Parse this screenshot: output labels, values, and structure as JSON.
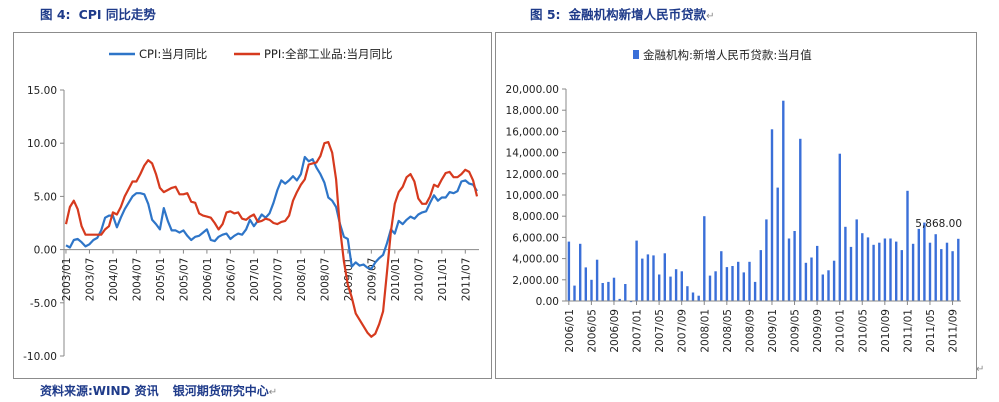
{
  "figure1": {
    "number": "图 4:",
    "title": "CPI 同比走势",
    "chart_data": {
      "type": "line",
      "x": [
        "2003/01",
        "2003/02",
        "2003/03",
        "2003/04",
        "2003/05",
        "2003/06",
        "2003/07",
        "2003/08",
        "2003/09",
        "2003/10",
        "2003/11",
        "2003/12",
        "2004/01",
        "2004/02",
        "2004/03",
        "2004/04",
        "2004/05",
        "2004/06",
        "2004/07",
        "2004/08",
        "2004/09",
        "2004/10",
        "2004/11",
        "2004/12",
        "2005/01",
        "2005/02",
        "2005/03",
        "2005/04",
        "2005/05",
        "2005/06",
        "2005/07",
        "2005/08",
        "2005/09",
        "2005/10",
        "2005/11",
        "2005/12",
        "2006/01",
        "2006/02",
        "2006/03",
        "2006/04",
        "2006/05",
        "2006/06",
        "2006/07",
        "2006/08",
        "2006/09",
        "2006/10",
        "2006/11",
        "2006/12",
        "2007/01",
        "2007/02",
        "2007/03",
        "2007/04",
        "2007/05",
        "2007/06",
        "2007/07",
        "2007/08",
        "2007/09",
        "2007/10",
        "2007/11",
        "2007/12",
        "2008/01",
        "2008/02",
        "2008/03",
        "2008/04",
        "2008/05",
        "2008/06",
        "2008/07",
        "2008/08",
        "2008/09",
        "2008/10",
        "2008/11",
        "2008/12",
        "2009/01",
        "2009/02",
        "2009/03",
        "2009/04",
        "2009/05",
        "2009/06",
        "2009/07",
        "2009/08",
        "2009/09",
        "2009/10",
        "2009/11",
        "2009/12",
        "2010/01",
        "2010/02",
        "2010/03",
        "2010/04",
        "2010/05",
        "2010/06",
        "2010/07",
        "2010/08",
        "2010/09",
        "2010/10",
        "2010/11",
        "2010/12",
        "2011/01",
        "2011/02",
        "2011/03",
        "2011/04",
        "2011/05",
        "2011/06",
        "2011/07",
        "2011/08",
        "2011/09",
        "2011/10"
      ],
      "x_tick_labels": [
        "2003/01",
        "2003/07",
        "2004/01",
        "2004/07",
        "2005/01",
        "2005/07",
        "2006/01",
        "2006/07",
        "2007/01",
        "2007/07",
        "2008/01",
        "2008/07",
        "2009/01",
        "2009/07",
        "2010/01",
        "2010/07",
        "2011/01",
        "2011/07"
      ],
      "ylim": [
        -10,
        15
      ],
      "y_ticks": [
        "15.00",
        "10.00",
        "5.00",
        "0.00",
        "-5.00",
        "-10.00"
      ],
      "y_tick_values": [
        15,
        10,
        5,
        0,
        -5,
        -10
      ],
      "legend_position": "top",
      "series": [
        {
          "name": "CPI:当月同比",
          "color": "#2e75c8",
          "values": [
            0.4,
            0.2,
            0.9,
            1.0,
            0.7,
            0.3,
            0.5,
            0.9,
            1.1,
            1.8,
            3.0,
            3.2,
            3.2,
            2.1,
            3.0,
            3.8,
            4.4,
            5.0,
            5.3,
            5.3,
            5.2,
            4.3,
            2.8,
            2.4,
            1.9,
            3.9,
            2.7,
            1.8,
            1.8,
            1.6,
            1.8,
            1.3,
            0.9,
            1.2,
            1.3,
            1.6,
            1.9,
            0.9,
            0.8,
            1.2,
            1.4,
            1.5,
            1.0,
            1.3,
            1.5,
            1.4,
            1.9,
            2.8,
            2.2,
            2.7,
            3.3,
            3.0,
            3.4,
            4.4,
            5.6,
            6.5,
            6.2,
            6.5,
            6.9,
            6.5,
            7.1,
            8.7,
            8.3,
            8.5,
            7.7,
            7.1,
            6.3,
            4.9,
            4.6,
            4.0,
            2.4,
            1.2,
            1.0,
            -1.6,
            -1.2,
            -1.5,
            -1.4,
            -1.7,
            -1.8,
            -1.2,
            -0.8,
            -0.5,
            0.6,
            1.9,
            1.5,
            2.7,
            2.4,
            2.8,
            3.1,
            2.9,
            3.3,
            3.5,
            3.6,
            4.4,
            5.1,
            4.6,
            4.9,
            4.9,
            5.4,
            5.3,
            5.5,
            6.4,
            6.5,
            6.2,
            6.1,
            5.5
          ]
        },
        {
          "name": "PPI:全部工业品:当月同比",
          "color": "#d63a1e",
          "values": [
            2.4,
            4.0,
            4.6,
            3.8,
            2.2,
            1.4,
            1.4,
            1.4,
            1.4,
            1.4,
            1.9,
            2.2,
            3.5,
            3.3,
            4.0,
            5.0,
            5.7,
            6.4,
            6.4,
            7.1,
            7.9,
            8.4,
            8.1,
            7.1,
            5.8,
            5.4,
            5.6,
            5.8,
            5.9,
            5.2,
            5.2,
            5.3,
            4.5,
            4.4,
            3.4,
            3.2,
            3.1,
            3.0,
            2.5,
            1.9,
            2.4,
            3.5,
            3.6,
            3.4,
            3.5,
            2.9,
            2.8,
            3.1,
            3.3,
            2.6,
            2.7,
            2.9,
            2.8,
            2.5,
            2.4,
            2.6,
            2.7,
            3.2,
            4.6,
            5.4,
            6.1,
            6.6,
            8.0,
            8.1,
            8.2,
            8.8,
            10.0,
            10.1,
            9.1,
            6.6,
            2.0,
            -1.1,
            -3.3,
            -4.5,
            -6.0,
            -6.6,
            -7.2,
            -7.8,
            -8.2,
            -7.9,
            -7.0,
            -5.8,
            -2.1,
            1.7,
            4.3,
            5.4,
            5.9,
            6.8,
            7.1,
            6.4,
            4.8,
            4.3,
            4.3,
            5.0,
            6.1,
            5.9,
            6.6,
            7.2,
            7.3,
            6.8,
            6.8,
            7.1,
            7.5,
            7.3,
            6.5,
            5.0
          ]
        }
      ]
    }
  },
  "figure2": {
    "number": "图 5:",
    "title": "金融机构新增人民币贷款",
    "chart_data": {
      "type": "bar",
      "x": [
        "2006/01",
        "2006/02",
        "2006/03",
        "2006/04",
        "2006/05",
        "2006/06",
        "2006/07",
        "2006/08",
        "2006/09",
        "2006/10",
        "2006/11",
        "2006/12",
        "2007/01",
        "2007/02",
        "2007/03",
        "2007/04",
        "2007/05",
        "2007/06",
        "2007/07",
        "2007/08",
        "2007/09",
        "2007/10",
        "2007/11",
        "2007/12",
        "2008/01",
        "2008/02",
        "2008/03",
        "2008/04",
        "2008/05",
        "2008/06",
        "2008/07",
        "2008/08",
        "2008/09",
        "2008/10",
        "2008/11",
        "2008/12",
        "2009/01",
        "2009/02",
        "2009/03",
        "2009/04",
        "2009/05",
        "2009/06",
        "2009/07",
        "2009/08",
        "2009/09",
        "2009/10",
        "2009/11",
        "2009/12",
        "2010/01",
        "2010/02",
        "2010/03",
        "2010/04",
        "2010/05",
        "2010/06",
        "2010/07",
        "2010/08",
        "2010/09",
        "2010/10",
        "2010/11",
        "2010/12",
        "2011/01",
        "2011/02",
        "2011/03",
        "2011/04",
        "2011/05",
        "2011/06",
        "2011/07",
        "2011/08",
        "2011/09",
        "2011/10"
      ],
      "x_tick_labels": [
        "2006/01",
        "2006/05",
        "2006/09",
        "2007/01",
        "2007/05",
        "2007/09",
        "2008/01",
        "2008/05",
        "2008/09",
        "2009/01",
        "2009/05",
        "2009/09",
        "2010/01",
        "2010/05",
        "2010/09",
        "2011/01",
        "2011/05",
        "2011/09"
      ],
      "ylim": [
        0,
        20000
      ],
      "y_ticks": [
        "20,000.00",
        "18,000.00",
        "16,000.00",
        "14,000.00",
        "12,000.00",
        "10,000.00",
        "8,000.00",
        "6,000.00",
        "4,000.00",
        "2,000.00",
        "0.00"
      ],
      "y_tick_values": [
        20000,
        18000,
        16000,
        14000,
        12000,
        10000,
        8000,
        6000,
        4000,
        2000,
        0
      ],
      "legend_position": "top",
      "annotation": "5,868.00",
      "series": [
        {
          "name": "金融机构:新增人民币贷款:当月值",
          "color": "#3a6fd8",
          "values": [
            5600,
            1450,
            5400,
            3170,
            2000,
            3900,
            1700,
            1800,
            2200,
            200,
            1600,
            -100,
            5700,
            4000,
            4400,
            4300,
            2500,
            4500,
            2300,
            3000,
            2800,
            1400,
            800,
            500,
            8000,
            2400,
            2800,
            4700,
            3200,
            3300,
            3700,
            2700,
            3700,
            1800,
            4800,
            7700,
            16200,
            10700,
            18900,
            5900,
            6600,
            15300,
            3600,
            4100,
            5200,
            2500,
            2900,
            3800,
            13900,
            7000,
            5100,
            7700,
            6400,
            6000,
            5300,
            5500,
            5900,
            5900,
            5600,
            4800,
            10400,
            5400,
            6800,
            7400,
            5500,
            6300,
            4900,
            5500,
            4700,
            5868
          ]
        }
      ]
    }
  },
  "footer": {
    "source": "资料来源:WIND 资讯",
    "org": "银河期货研究中心"
  }
}
